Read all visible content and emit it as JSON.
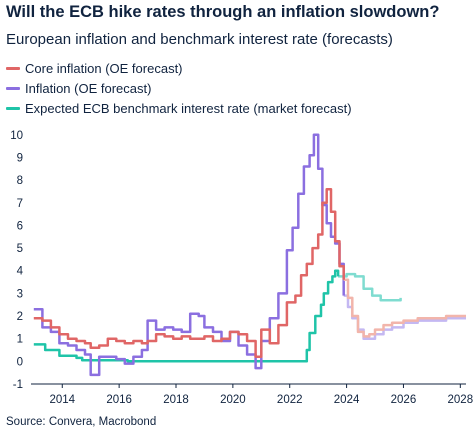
{
  "title": "Will the ECB hike rates through an inflation slowdown?",
  "subtitle": "European inflation and benchmark interest rate (forecasts)",
  "source": "Source: Convera, Macrobond",
  "colors": {
    "core": "#e06666",
    "core_forecast": "#f2b5ab",
    "inflation": "#8b6fe0",
    "inflation_forecast": "#c4b8f2",
    "rate": "#1fc4a8",
    "rate_forecast": "#7fdcd0",
    "axis": "#10233f"
  },
  "chart_data": {
    "type": "line",
    "xlim": [
      2012.9,
      2028.2
    ],
    "ylim": [
      -1,
      10.3
    ],
    "x_ticks": [
      "2014",
      "2016",
      "2018",
      "2020",
      "2022",
      "2024",
      "2026",
      "2028"
    ],
    "y_ticks": [
      "-1",
      "0",
      "1",
      "2",
      "3",
      "4",
      "5",
      "6",
      "7",
      "8",
      "9",
      "10"
    ],
    "series": [
      {
        "name": "Core inflation (OE forecast)",
        "color_key": "core",
        "forecast_color_key": "core_forecast",
        "forecast_from": 2023.9,
        "points": [
          [
            2013.0,
            1.9
          ],
          [
            2013.3,
            1.8
          ],
          [
            2013.6,
            1.5
          ],
          [
            2013.9,
            1.2
          ],
          [
            2014.2,
            1.0
          ],
          [
            2014.5,
            0.9
          ],
          [
            2014.8,
            0.8
          ],
          [
            2015.0,
            0.6
          ],
          [
            2015.3,
            0.7
          ],
          [
            2015.6,
            1.0
          ],
          [
            2015.9,
            0.9
          ],
          [
            2016.2,
            0.8
          ],
          [
            2016.5,
            0.9
          ],
          [
            2016.8,
            0.8
          ],
          [
            2017.0,
            0.9
          ],
          [
            2017.3,
            1.2
          ],
          [
            2017.6,
            1.1
          ],
          [
            2017.9,
            1.0
          ],
          [
            2018.2,
            1.1
          ],
          [
            2018.5,
            1.0
          ],
          [
            2018.8,
            1.0
          ],
          [
            2019.0,
            1.1
          ],
          [
            2019.3,
            0.9
          ],
          [
            2019.6,
            1.0
          ],
          [
            2019.9,
            1.3
          ],
          [
            2020.2,
            1.2
          ],
          [
            2020.5,
            0.9
          ],
          [
            2020.8,
            0.2
          ],
          [
            2021.0,
            1.4
          ],
          [
            2021.3,
            0.8
          ],
          [
            2021.6,
            1.6
          ],
          [
            2021.9,
            2.6
          ],
          [
            2022.2,
            2.9
          ],
          [
            2022.4,
            3.8
          ],
          [
            2022.6,
            4.3
          ],
          [
            2022.8,
            5.0
          ],
          [
            2023.0,
            5.6
          ],
          [
            2023.15,
            7.0
          ],
          [
            2023.3,
            7.6
          ],
          [
            2023.45,
            6.6
          ],
          [
            2023.6,
            5.3
          ],
          [
            2023.75,
            4.2
          ],
          [
            2023.9,
            3.6
          ],
          [
            2024.05,
            2.8
          ],
          [
            2024.2,
            2.0
          ],
          [
            2024.4,
            1.3
          ],
          [
            2024.6,
            1.1
          ],
          [
            2024.8,
            1.2
          ],
          [
            2025.0,
            1.4
          ],
          [
            2025.3,
            1.6
          ],
          [
            2025.6,
            1.7
          ],
          [
            2026.0,
            1.8
          ],
          [
            2026.5,
            1.9
          ],
          [
            2027.0,
            1.9
          ],
          [
            2027.5,
            2.0
          ],
          [
            2028.2,
            2.0
          ]
        ]
      },
      {
        "name": "Inflation (OE forecast)",
        "color_key": "inflation",
        "forecast_color_key": "inflation_forecast",
        "forecast_from": 2023.9,
        "points": [
          [
            2013.0,
            2.3
          ],
          [
            2013.3,
            1.5
          ],
          [
            2013.6,
            1.3
          ],
          [
            2013.9,
            0.8
          ],
          [
            2014.2,
            0.7
          ],
          [
            2014.5,
            0.5
          ],
          [
            2014.8,
            0.3
          ],
          [
            2015.0,
            -0.6
          ],
          [
            2015.3,
            0.2
          ],
          [
            2015.6,
            0.2
          ],
          [
            2015.9,
            0.1
          ],
          [
            2016.2,
            -0.1
          ],
          [
            2016.5,
            0.2
          ],
          [
            2016.8,
            0.5
          ],
          [
            2017.0,
            1.8
          ],
          [
            2017.3,
            1.4
          ],
          [
            2017.6,
            1.5
          ],
          [
            2017.9,
            1.4
          ],
          [
            2018.2,
            1.3
          ],
          [
            2018.5,
            2.1
          ],
          [
            2018.8,
            2.0
          ],
          [
            2019.0,
            1.5
          ],
          [
            2019.3,
            1.3
          ],
          [
            2019.6,
            0.9
          ],
          [
            2019.9,
            1.3
          ],
          [
            2020.2,
            0.7
          ],
          [
            2020.5,
            0.3
          ],
          [
            2020.8,
            -0.3
          ],
          [
            2021.0,
            0.9
          ],
          [
            2021.3,
            1.9
          ],
          [
            2021.6,
            3.0
          ],
          [
            2021.9,
            4.9
          ],
          [
            2022.1,
            5.9
          ],
          [
            2022.3,
            7.4
          ],
          [
            2022.5,
            8.6
          ],
          [
            2022.7,
            9.1
          ],
          [
            2022.85,
            10.0
          ],
          [
            2023.0,
            8.5
          ],
          [
            2023.15,
            6.9
          ],
          [
            2023.3,
            6.1
          ],
          [
            2023.45,
            5.5
          ],
          [
            2023.6,
            5.2
          ],
          [
            2023.75,
            4.3
          ],
          [
            2023.9,
            2.9
          ],
          [
            2024.05,
            2.4
          ],
          [
            2024.2,
            1.9
          ],
          [
            2024.4,
            1.4
          ],
          [
            2024.6,
            1.0
          ],
          [
            2024.8,
            1.0
          ],
          [
            2025.0,
            1.2
          ],
          [
            2025.3,
            1.4
          ],
          [
            2025.6,
            1.5
          ],
          [
            2026.0,
            1.7
          ],
          [
            2026.5,
            1.8
          ],
          [
            2027.0,
            1.8
          ],
          [
            2027.5,
            1.9
          ],
          [
            2028.2,
            1.9
          ]
        ]
      },
      {
        "name": "Expected ECB benchmark interest rate (market forecast)",
        "color_key": "rate",
        "forecast_color_key": "rate_forecast",
        "forecast_from": 2023.7,
        "points": [
          [
            2013.0,
            0.75
          ],
          [
            2013.4,
            0.5
          ],
          [
            2013.8,
            0.5
          ],
          [
            2013.9,
            0.25
          ],
          [
            2014.4,
            0.25
          ],
          [
            2014.5,
            0.15
          ],
          [
            2014.7,
            0.05
          ],
          [
            2016.2,
            0.05
          ],
          [
            2016.3,
            0.0
          ],
          [
            2022.5,
            0.0
          ],
          [
            2022.6,
            0.5
          ],
          [
            2022.7,
            1.25
          ],
          [
            2022.9,
            2.0
          ],
          [
            2023.1,
            2.5
          ],
          [
            2023.2,
            3.0
          ],
          [
            2023.35,
            3.5
          ],
          [
            2023.5,
            3.75
          ],
          [
            2023.6,
            4.0
          ],
          [
            2023.7,
            3.75
          ],
          [
            2024.0,
            3.85
          ],
          [
            2024.3,
            3.75
          ],
          [
            2024.6,
            3.2
          ],
          [
            2024.9,
            2.9
          ],
          [
            2025.2,
            2.7
          ],
          [
            2025.5,
            2.7
          ],
          [
            2025.9,
            2.8
          ]
        ]
      }
    ]
  }
}
